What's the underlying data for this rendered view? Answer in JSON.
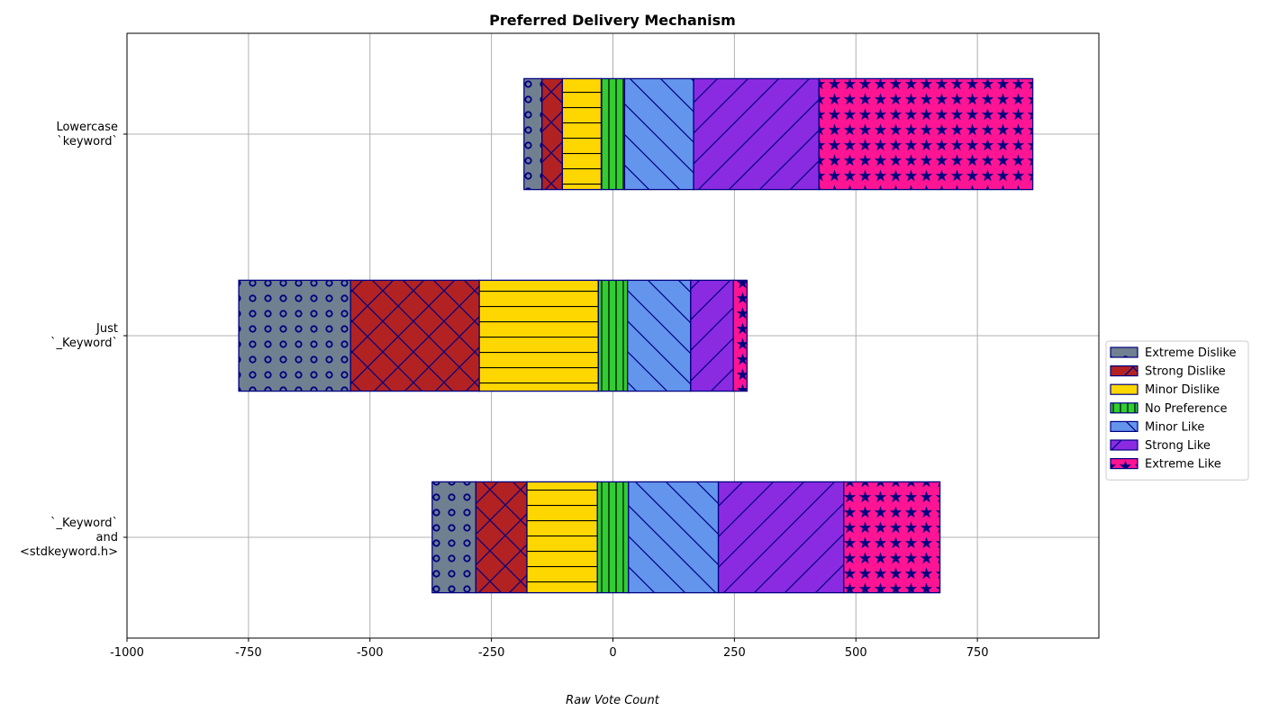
{
  "chart_data": {
    "type": "bar",
    "orientation": "horizontal",
    "stacked": "diverging",
    "title": "Preferred Delivery Mechanism",
    "xlabel": "Raw Vote Count",
    "ylabel": "",
    "xlim": [
      -1000,
      1000
    ],
    "xticks": [
      -1000,
      -750,
      -500,
      -250,
      0,
      250,
      500,
      750
    ],
    "xtick_labels": [
      "-1000",
      "-750",
      "-500",
      "-250",
      "0",
      "250",
      "500",
      "750"
    ],
    "grid": true,
    "legend_position": "right",
    "categories": [
      [
        "Lowercase",
        "`keyword`"
      ],
      [
        "Just",
        "`_Keyword`"
      ],
      [
        "`_Keyword`",
        "and",
        "<stdkeyword.h>"
      ]
    ],
    "series": [
      {
        "name": "Extreme Dislike",
        "color": "#708090",
        "pattern": "circles",
        "values": [
          37,
          230,
          90
        ]
      },
      {
        "name": "Strong Dislike",
        "color": "#b22222",
        "pattern": "crosshatch",
        "values": [
          42,
          265,
          105
        ]
      },
      {
        "name": "Minor Dislike",
        "color": "#ffd700",
        "pattern": "horizontal",
        "values": [
          80,
          245,
          145
        ]
      },
      {
        "name": "No Preference",
        "color": "#32cd32",
        "pattern": "vertical",
        "values": [
          48,
          60,
          64
        ]
      },
      {
        "name": "Minor Like",
        "color": "#6495ed",
        "pattern": "backslash",
        "values": [
          142,
          130,
          185
        ]
      },
      {
        "name": "Strong Like",
        "color": "#8a2be2",
        "pattern": "slash",
        "values": [
          258,
          88,
          258
        ]
      },
      {
        "name": "Extreme Like",
        "color": "#ff1493",
        "pattern": "stars",
        "values": [
          440,
          28,
          198
        ]
      }
    ]
  }
}
